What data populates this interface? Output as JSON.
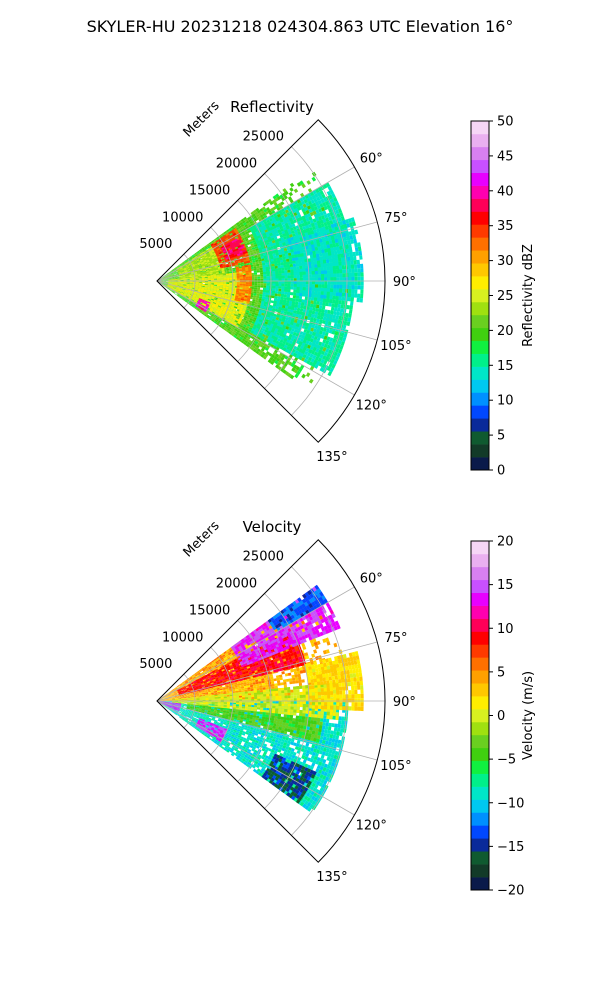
{
  "figure": {
    "suptitle": "SKYLER-HU  20231218  024304.863 UTC Elevation 16°"
  },
  "chart_data": [
    {
      "type": "heatmap",
      "projection": "polar-sector",
      "title": "Reflectivity",
      "radial_axis_label": "Meters",
      "radial_ticks": [
        5000,
        10000,
        15000,
        20000,
        25000
      ],
      "radial_tick_labels": [
        "5000",
        "10000",
        "15000",
        "20000",
        "25000"
      ],
      "rmax": 30000,
      "angle_range_deg": [
        45,
        135
      ],
      "angle_ticks_deg": [
        60,
        75,
        90,
        105,
        120,
        135
      ],
      "angle_tick_labels": [
        "60°",
        "75°",
        "90°",
        "105°",
        "120°",
        "135°"
      ],
      "grid": true,
      "colorbar": {
        "label": "Reflectivity dBZ",
        "min": 0,
        "max": 50,
        "ticks": [
          0,
          5,
          10,
          15,
          20,
          25,
          30,
          35,
          40,
          45,
          50
        ],
        "tick_labels": [
          "0",
          "5",
          "10",
          "15",
          "20",
          "25",
          "30",
          "35",
          "40",
          "45",
          "50"
        ],
        "colors": [
          "#0a1a4a",
          "#123a28",
          "#0f5a30",
          "#0a2a9a",
          "#0048ff",
          "#0090ff",
          "#00c8f0",
          "#00e6c8",
          "#00f08a",
          "#10f040",
          "#40d010",
          "#6ad020",
          "#a0e010",
          "#d8f020",
          "#ffee00",
          "#ffc800",
          "#ffa000",
          "#ff7000",
          "#ff3a00",
          "#ff0000",
          "#ff0058",
          "#ff00b0",
          "#e800ff",
          "#c850ff",
          "#d880f0",
          "#eab0f0",
          "#f6d6f6"
        ]
      },
      "field_description": "patches (dBZ)",
      "patches": [
        {
          "r0": 0,
          "r1": 25000,
          "a0": 54,
          "a1": 126,
          "value": 20
        },
        {
          "r0": 1500,
          "r1": 12000,
          "a0": 84,
          "a1": 120,
          "value": 26
        },
        {
          "r0": 3000,
          "r1": 9000,
          "a0": 58,
          "a1": 84,
          "value": 24
        },
        {
          "r0": 8500,
          "r1": 12500,
          "a0": 56,
          "a1": 78,
          "value": 34
        },
        {
          "r0": 9500,
          "r1": 12000,
          "a0": 62,
          "a1": 72,
          "value": 38
        },
        {
          "r0": 10500,
          "r1": 12500,
          "a0": 80,
          "a1": 104,
          "value": 32
        },
        {
          "r0": 6000,
          "r1": 7500,
          "a0": 112,
          "a1": 122,
          "value": 40
        },
        {
          "r0": 14000,
          "r1": 26000,
          "a0": 60,
          "a1": 118,
          "value": 15
        },
        {
          "r0": 18000,
          "r1": 27000,
          "a0": 72,
          "a1": 96,
          "value": 14
        }
      ]
    },
    {
      "type": "heatmap",
      "projection": "polar-sector",
      "title": "Velocity",
      "radial_axis_label": "Meters",
      "radial_ticks": [
        5000,
        10000,
        15000,
        20000,
        25000
      ],
      "radial_tick_labels": [
        "5000",
        "10000",
        "15000",
        "20000",
        "25000"
      ],
      "rmax": 30000,
      "angle_range_deg": [
        45,
        135
      ],
      "angle_ticks_deg": [
        60,
        75,
        90,
        105,
        120,
        135
      ],
      "angle_tick_labels": [
        "60°",
        "75°",
        "90°",
        "105°",
        "120°",
        "135°"
      ],
      "grid": true,
      "colorbar": {
        "label": "Velocity (m/s)",
        "min": -20,
        "max": 20,
        "ticks": [
          -20,
          -15,
          -10,
          -5,
          0,
          5,
          10,
          15,
          20
        ],
        "tick_labels": [
          "−20",
          "−15",
          "−10",
          "−5",
          "0",
          "5",
          "10",
          "15",
          "20"
        ],
        "colors": [
          "#0a1a4a",
          "#123a28",
          "#0f5a30",
          "#0a2a9a",
          "#0048ff",
          "#0090ff",
          "#00c8f0",
          "#00e6c8",
          "#00f08a",
          "#10f040",
          "#40d010",
          "#6ad020",
          "#a0e010",
          "#d8f020",
          "#ffee00",
          "#ffc800",
          "#ffa000",
          "#ff7000",
          "#ff3a00",
          "#ff0000",
          "#ff0058",
          "#ff00b0",
          "#e800ff",
          "#c850ff",
          "#d880f0",
          "#eab0f0",
          "#f6d6f6"
        ]
      },
      "field_description": "patches (m/s)",
      "patches": [
        {
          "r0": 0,
          "r1": 25000,
          "a0": 54,
          "a1": 90,
          "value": 4
        },
        {
          "r0": 0,
          "r1": 25000,
          "a0": 90,
          "a1": 126,
          "value": -9
        },
        {
          "r0": 2000,
          "r1": 24000,
          "a0": 84,
          "a1": 96,
          "value": 0
        },
        {
          "r0": 3000,
          "r1": 20000,
          "a0": 62,
          "a1": 76,
          "value": 9
        },
        {
          "r0": 12000,
          "r1": 26000,
          "a0": 54,
          "a1": 68,
          "value": 14
        },
        {
          "r0": 18000,
          "r1": 26000,
          "a0": 54,
          "a1": 60,
          "value": -13
        },
        {
          "r0": 20000,
          "r1": 27000,
          "a0": 76,
          "a1": 92,
          "value": 2
        },
        {
          "r0": 4000,
          "r1": 22000,
          "a0": 96,
          "a1": 104,
          "value": -4
        },
        {
          "r0": 6000,
          "r1": 10000,
          "a0": 112,
          "a1": 122,
          "value": 14
        },
        {
          "r0": 0,
          "r1": 3000,
          "a0": 96,
          "a1": 116,
          "value": 14
        },
        {
          "r0": 17000,
          "r1": 23000,
          "a0": 114,
          "a1": 125,
          "value": -15
        }
      ]
    }
  ]
}
